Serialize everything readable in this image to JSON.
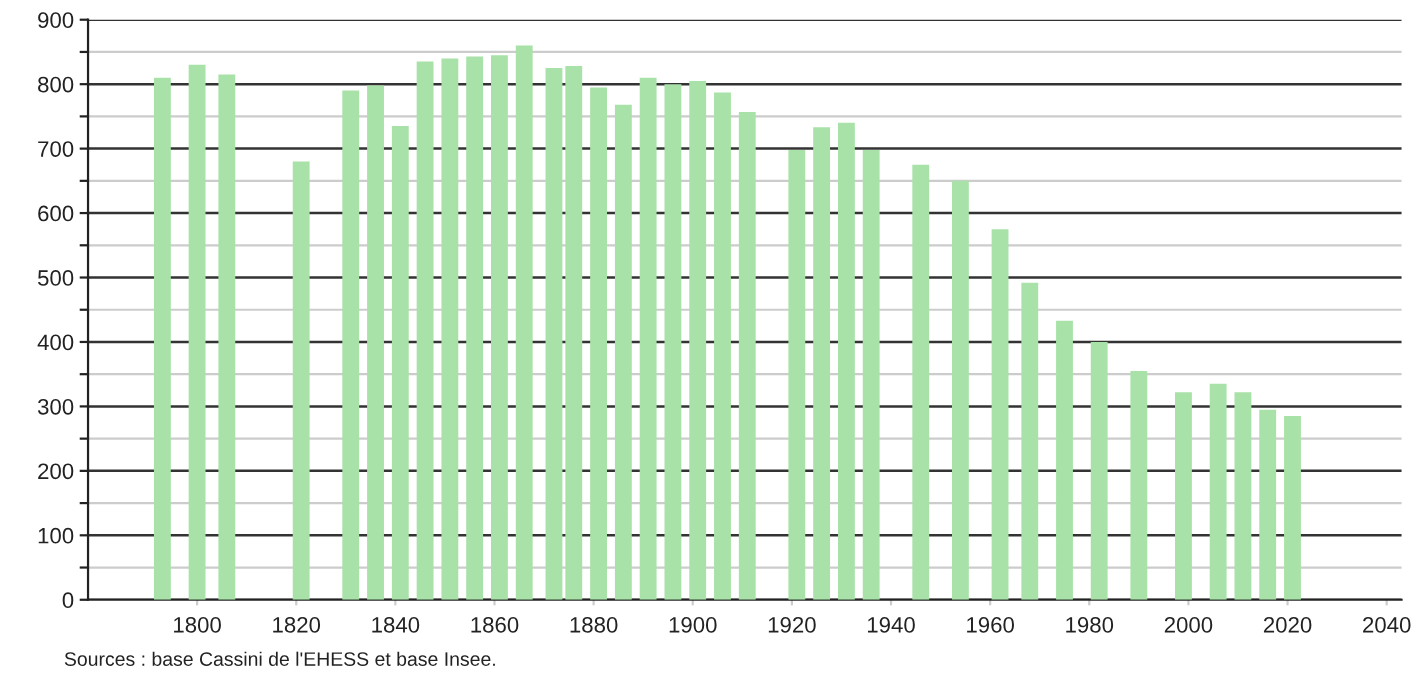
{
  "chart_data": {
    "type": "bar",
    "x": [
      1793,
      1800,
      1806,
      1821,
      1831,
      1836,
      1841,
      1846,
      1851,
      1856,
      1861,
      1866,
      1872,
      1876,
      1881,
      1886,
      1891,
      1896,
      1901,
      1906,
      1911,
      1921,
      1926,
      1931,
      1936,
      1946,
      1954,
      1962,
      1968,
      1975,
      1982,
      1990,
      1999,
      2006,
      2011,
      2016,
      2021
    ],
    "values": [
      810,
      830,
      815,
      680,
      790,
      798,
      735,
      835,
      840,
      843,
      845,
      860,
      825,
      828,
      795,
      768,
      810,
      800,
      805,
      787,
      757,
      698,
      733,
      740,
      698,
      675,
      650,
      575,
      492,
      433,
      400,
      355,
      322,
      335,
      322,
      295,
      285
    ],
    "color": "#a8e2a8",
    "xlim": [
      1778,
      2043
    ],
    "xticks": [
      1800,
      1820,
      1840,
      1860,
      1880,
      1900,
      1920,
      1940,
      1960,
      1980,
      2000,
      2020,
      2040
    ],
    "ylim": [
      0,
      900
    ],
    "yticks": [
      0,
      {
        "value": 50,
        "label": null
      },
      100,
      {
        "value": 150,
        "label": null
      },
      200,
      {
        "value": 250,
        "label": null
      },
      300,
      {
        "value": 350,
        "label": null
      },
      400,
      {
        "value": 450,
        "label": null
      },
      500,
      {
        "value": 550,
        "label": null
      },
      600,
      {
        "value": 650,
        "label": null
      },
      700,
      {
        "value": 750,
        "label": null
      },
      800,
      {
        "value": 850,
        "label": null
      },
      900
    ],
    "grid": "y",
    "annotations": [
      "Sources : base Cassini de l'EHESS et base Insee."
    ]
  }
}
